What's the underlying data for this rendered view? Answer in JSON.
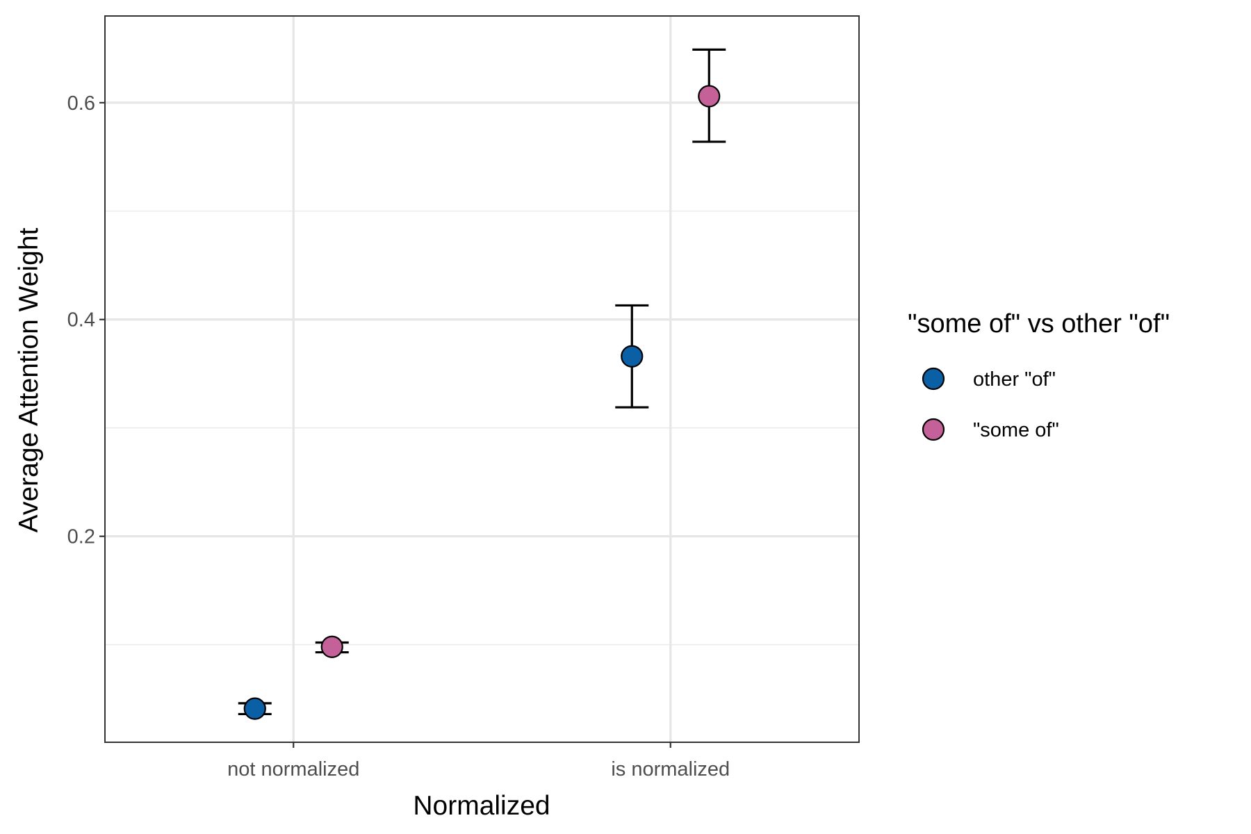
{
  "chart_data": {
    "type": "scatter",
    "title": "",
    "xlabel": "Normalized",
    "ylabel": "Average Attention Weight",
    "categories": [
      "not normalized",
      "is normalized"
    ],
    "ylim": [
      0.01,
      0.68
    ],
    "yticks": [
      0.2,
      0.4,
      0.6
    ],
    "y_ticks_labels": [
      "0.2",
      "0.4",
      "0.6"
    ],
    "grid": true,
    "legend": {
      "title": "\"some of\" vs other \"of\"",
      "position": "right",
      "entries": [
        "other \"of\"",
        "\"some of\""
      ]
    },
    "series": [
      {
        "name": "other \"of\"",
        "color": "#0b5fa5",
        "values": [
          0.041,
          0.366
        ],
        "error_low": [
          0.036,
          0.319
        ],
        "error_high": [
          0.046,
          0.413
        ]
      },
      {
        "name": "\"some of\"",
        "color": "#c46198",
        "values": [
          0.098,
          0.606
        ],
        "error_low": [
          0.093,
          0.564
        ],
        "error_high": [
          0.102,
          0.649
        ]
      }
    ]
  }
}
